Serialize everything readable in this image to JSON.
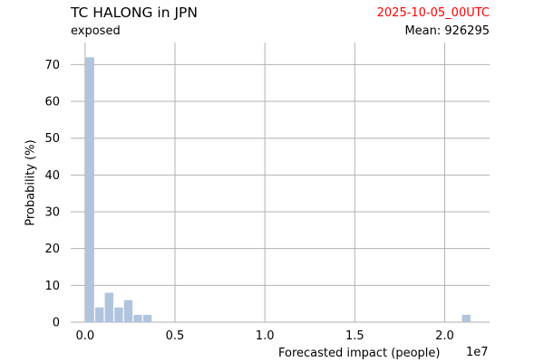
{
  "header": {
    "title": "TC HALONG in JPN",
    "subtitle": "exposed",
    "date": "2025-10-05_00UTC",
    "mean": "Mean: 926295"
  },
  "colors": {
    "bar": "#b0c4de",
    "grid": "#b0b0b0",
    "date": "#ff0000"
  },
  "chart_data": {
    "type": "bar",
    "xlabel": "Forecasted impact (people)",
    "ylabel": "Probability (%)",
    "x_offset_label": "1e7",
    "xlim": [
      -0.08,
      2.25
    ],
    "ylim": [
      0,
      76
    ],
    "x_ticks": [
      0.0,
      0.5,
      1.0,
      1.5,
      2.0
    ],
    "x_tick_labels": [
      "0.0",
      "0.5",
      "1.0",
      "1.5",
      "2.0"
    ],
    "y_ticks": [
      0,
      10,
      20,
      30,
      40,
      50,
      60,
      70
    ],
    "y_tick_labels": [
      "0",
      "10",
      "20",
      "30",
      "40",
      "50",
      "60",
      "70"
    ],
    "grid": true,
    "bin_width": 0.0533,
    "bins": [
      {
        "x": 0.0267,
        "value": 72
      },
      {
        "x": 0.08,
        "value": 4
      },
      {
        "x": 0.1333,
        "value": 8
      },
      {
        "x": 0.1867,
        "value": 4
      },
      {
        "x": 0.24,
        "value": 6
      },
      {
        "x": 0.2933,
        "value": 2
      },
      {
        "x": 0.3467,
        "value": 2
      },
      {
        "x": 2.12,
        "value": 2
      }
    ]
  }
}
